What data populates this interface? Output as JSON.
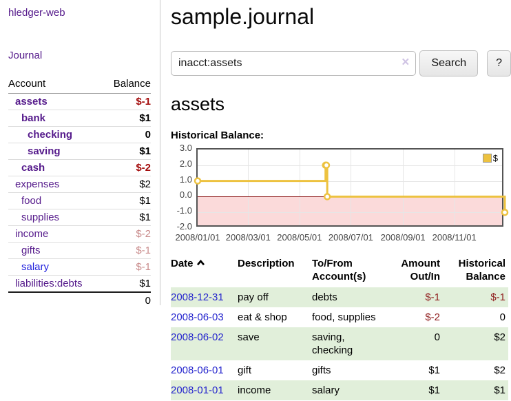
{
  "sidebar": {
    "app_title": "hledger-web",
    "journal_link": "Journal",
    "account_header": "Account",
    "balance_header": "Balance",
    "accounts": [
      {
        "name": "assets",
        "depth": 1,
        "bold": true,
        "link_color": "purple",
        "balance": "$-1",
        "balance_tone": "neg-strong"
      },
      {
        "name": "bank",
        "depth": 2,
        "bold": true,
        "link_color": "purple",
        "balance": "$1",
        "balance_tone": "normal"
      },
      {
        "name": "checking",
        "depth": 3,
        "bold": true,
        "link_color": "purple",
        "balance": "0",
        "balance_tone": "normal"
      },
      {
        "name": "saving",
        "depth": 3,
        "bold": true,
        "link_color": "purple",
        "balance": "$1",
        "balance_tone": "normal"
      },
      {
        "name": "cash",
        "depth": 2,
        "bold": true,
        "link_color": "purple",
        "balance": "$-2",
        "balance_tone": "neg-strong"
      },
      {
        "name": "expenses",
        "depth": 1,
        "bold": false,
        "link_color": "purple",
        "balance": "$2",
        "balance_tone": "normal"
      },
      {
        "name": "food",
        "depth": 2,
        "bold": false,
        "link_color": "purple",
        "balance": "$1",
        "balance_tone": "normal"
      },
      {
        "name": "supplies",
        "depth": 2,
        "bold": false,
        "link_color": "purple",
        "balance": "$1",
        "balance_tone": "normal"
      },
      {
        "name": "income",
        "depth": 1,
        "bold": false,
        "link_color": "purple",
        "balance": "$-2",
        "balance_tone": "neg-soft"
      },
      {
        "name": "gifts",
        "depth": 2,
        "bold": false,
        "link_color": "purple",
        "balance": "$-1",
        "balance_tone": "neg-soft"
      },
      {
        "name": "salary",
        "depth": 2,
        "bold": false,
        "link_color": "blue",
        "balance": "$-1",
        "balance_tone": "neg-soft"
      },
      {
        "name": "liabilities:debts",
        "depth": 1,
        "bold": false,
        "link_color": "purple",
        "balance": "$1",
        "balance_tone": "normal"
      }
    ],
    "total": "0"
  },
  "main": {
    "title": "sample.journal",
    "search": {
      "value": "inacct:assets",
      "clear_icon": "×",
      "button": "Search",
      "help": "?"
    },
    "account_heading": "assets",
    "chart_label": "Historical Balance:"
  },
  "chart_data": {
    "type": "line",
    "style": "steps",
    "title": "Historical Balance:",
    "legend": [
      {
        "label": "$",
        "color": "#edc240"
      }
    ],
    "legend_position": "top-right",
    "grid": true,
    "ylim": [
      -2,
      3
    ],
    "y_ticks": [
      "3.0",
      "2.0",
      "1.0",
      "0.0",
      "-1.0",
      "-2.0"
    ],
    "x_ticks": [
      {
        "label": "2008/01/01",
        "day": 0
      },
      {
        "label": "2008/03/01",
        "day": 60
      },
      {
        "label": "2008/05/01",
        "day": 121
      },
      {
        "label": "2008/07/01",
        "day": 182
      },
      {
        "label": "2008/09/01",
        "day": 244
      },
      {
        "label": "2008/11/01",
        "day": 305
      }
    ],
    "x_range_days": 365,
    "series": [
      {
        "name": "$",
        "color": "#edc240",
        "points": [
          {
            "date": "2008-01-01",
            "day": 0,
            "value": 1.0
          },
          {
            "date": "2008-06-01",
            "day": 152,
            "value": 2.0
          },
          {
            "date": "2008-06-02",
            "day": 153,
            "value": 2.0
          },
          {
            "date": "2008-06-03",
            "day": 154,
            "value": 0.0
          },
          {
            "date": "2008-12-31",
            "day": 365,
            "value": -1.0
          }
        ]
      }
    ],
    "colors": {
      "negative_region": "#fbdada",
      "zero_line": "#8e1b1b",
      "gridline": "#e6e6e6",
      "plot_border": "#545454"
    }
  },
  "table": {
    "headers": {
      "date": "Date",
      "description": "Description",
      "accounts": "To/From Account(s)",
      "amount": "Amount Out/In",
      "balance": "Historical Balance"
    },
    "stripe_color": "#e1efda",
    "rows": [
      {
        "date": "2008-12-31",
        "description": "pay off",
        "accounts": "debts",
        "amount": "$-1",
        "amount_neg": true,
        "balance": "$-1",
        "balance_neg": true
      },
      {
        "date": "2008-06-03",
        "description": "eat & shop",
        "accounts": "food, supplies",
        "amount": "$-2",
        "amount_neg": true,
        "balance": "0",
        "balance_neg": false
      },
      {
        "date": "2008-06-02",
        "description": "save",
        "accounts": "saving, checking",
        "amount": "0",
        "amount_neg": false,
        "balance": "$2",
        "balance_neg": false
      },
      {
        "date": "2008-06-01",
        "description": "gift",
        "accounts": "gifts",
        "amount": "$1",
        "amount_neg": false,
        "balance": "$2",
        "balance_neg": false
      },
      {
        "date": "2008-01-01",
        "description": "income",
        "accounts": "salary",
        "amount": "$1",
        "amount_neg": false,
        "balance": "$1",
        "balance_neg": false
      }
    ]
  }
}
